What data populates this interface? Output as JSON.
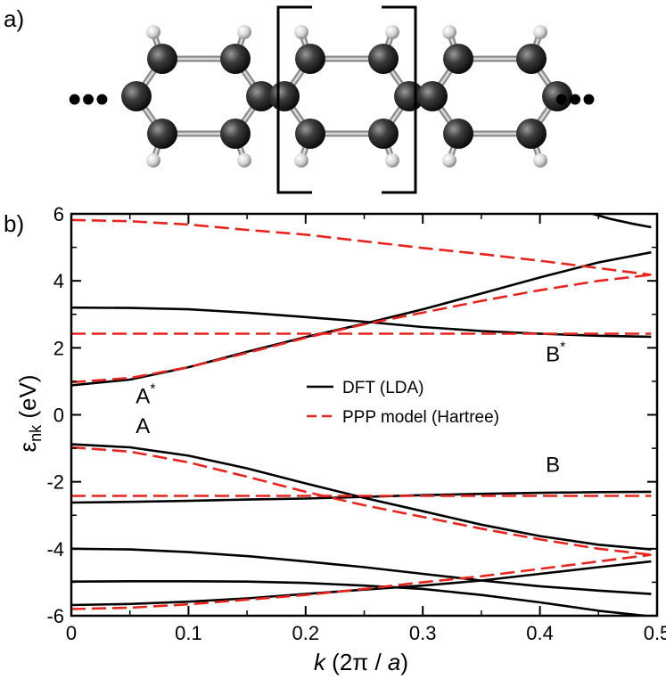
{
  "panel_a": {
    "label": "a)",
    "ellipsis_left": "•••",
    "ellipsis_right": "•••"
  },
  "panel_b": {
    "label": "b)"
  },
  "chart_data": {
    "type": "line",
    "xlabel_italic": "k",
    "xlabel_rest": " (2π / ",
    "xlabel_italic2": "a",
    "xlabel_close": ")",
    "ylabel_main": "ε",
    "ylabel_sub": "nk",
    "ylabel_rest": " (eV)",
    "xlim": [
      0,
      0.5
    ],
    "ylim": [
      -6,
      6
    ],
    "x_ticks": [
      0,
      0.1,
      0.2,
      0.3,
      0.4,
      0.5
    ],
    "x_tick_labels": [
      "0",
      "0.1",
      "0.2",
      "0.3",
      "0.4",
      "0.5"
    ],
    "y_ticks": [
      -6,
      -4,
      -2,
      0,
      2,
      4,
      6
    ],
    "y_tick_labels": [
      "-6",
      "-4",
      "-2",
      "0",
      "2",
      "4",
      "6"
    ],
    "legend": {
      "placement": "center-right",
      "entries": [
        {
          "label": "DFT (LDA)",
          "color": "#000000",
          "dash": "solid"
        },
        {
          "label": "PPP model (Hartree)",
          "color": "#e8241e",
          "dash": "dashed"
        }
      ]
    },
    "annotations": [
      {
        "text": "A",
        "sup": "*",
        "x": 0.055,
        "y": 0.35
      },
      {
        "text": "A",
        "sup": "",
        "x": 0.055,
        "y": -0.55
      },
      {
        "text": "B",
        "sup": "*",
        "x": 0.405,
        "y": 1.6
      },
      {
        "text": "B",
        "sup": "",
        "x": 0.405,
        "y": -1.7
      }
    ],
    "series": [
      {
        "group": "DFT (LDA)",
        "color": "#000000",
        "dash": "solid",
        "x": [
          0,
          0.05,
          0.1,
          0.15,
          0.2,
          0.25,
          0.3,
          0.35,
          0.4,
          0.45,
          0.495
        ],
        "y": [
          3.2,
          3.19,
          3.15,
          3.05,
          2.92,
          2.78,
          2.62,
          2.5,
          2.42,
          2.36,
          2.33
        ]
      },
      {
        "group": "DFT (LDA)",
        "color": "#000000",
        "dash": "solid",
        "x": [
          0,
          0.05,
          0.1,
          0.15,
          0.2,
          0.25,
          0.3,
          0.35,
          0.4,
          0.45,
          0.495
        ],
        "y": [
          0.88,
          1.05,
          1.42,
          1.88,
          2.32,
          2.72,
          3.15,
          3.62,
          4.1,
          4.55,
          4.85
        ]
      },
      {
        "group": "DFT (LDA)",
        "color": "#000000",
        "dash": "solid",
        "x": [
          0.44,
          0.46,
          0.48,
          0.495
        ],
        "y": [
          6.05,
          5.85,
          5.7,
          5.6
        ]
      },
      {
        "group": "DFT (LDA)",
        "color": "#000000",
        "dash": "solid",
        "x": [
          0,
          0.05,
          0.1,
          0.15,
          0.2,
          0.25,
          0.3,
          0.35,
          0.4,
          0.45,
          0.495
        ],
        "y": [
          -0.88,
          -0.97,
          -1.22,
          -1.6,
          -2.05,
          -2.48,
          -2.88,
          -3.28,
          -3.62,
          -3.88,
          -4.02
        ]
      },
      {
        "group": "DFT (LDA)",
        "color": "#000000",
        "dash": "solid",
        "x": [
          0,
          0.05,
          0.1,
          0.15,
          0.2,
          0.25,
          0.3,
          0.35,
          0.4,
          0.45,
          0.495
        ],
        "y": [
          -2.62,
          -2.6,
          -2.57,
          -2.53,
          -2.5,
          -2.45,
          -2.4,
          -2.36,
          -2.33,
          -2.31,
          -2.3
        ]
      },
      {
        "group": "DFT (LDA)",
        "color": "#000000",
        "dash": "solid",
        "x": [
          0,
          0.05,
          0.1,
          0.15,
          0.2,
          0.25,
          0.3,
          0.35,
          0.4,
          0.45,
          0.495
        ],
        "y": [
          -4.0,
          -4.02,
          -4.1,
          -4.22,
          -4.38,
          -4.55,
          -4.75,
          -4.95,
          -5.12,
          -5.25,
          -5.35
        ]
      },
      {
        "group": "DFT (LDA)",
        "color": "#000000",
        "dash": "solid",
        "x": [
          0,
          0.05,
          0.1,
          0.15,
          0.2,
          0.25,
          0.3,
          0.35,
          0.4,
          0.45,
          0.495
        ],
        "y": [
          -4.98,
          -4.97,
          -4.97,
          -4.98,
          -5.02,
          -5.1,
          -5.2,
          -5.38,
          -5.6,
          -5.85,
          -6.02
        ]
      },
      {
        "group": "DFT (LDA)",
        "color": "#000000",
        "dash": "solid",
        "x": [
          0,
          0.05,
          0.1,
          0.15,
          0.2,
          0.25,
          0.3,
          0.35,
          0.4,
          0.45,
          0.495
        ],
        "y": [
          -5.68,
          -5.65,
          -5.58,
          -5.48,
          -5.35,
          -5.22,
          -5.1,
          -4.95,
          -4.75,
          -4.55,
          -4.38
        ]
      },
      {
        "group": "PPP model (Hartree)",
        "color": "#e8241e",
        "dash": "dashed",
        "x": [
          0,
          0.05,
          0.1,
          0.15,
          0.2,
          0.25,
          0.3,
          0.35,
          0.4,
          0.45,
          0.495
        ],
        "y": [
          5.82,
          5.78,
          5.68,
          5.52,
          5.38,
          5.18,
          4.98,
          4.8,
          4.6,
          4.38,
          4.18
        ]
      },
      {
        "group": "PPP model (Hartree)",
        "color": "#e8241e",
        "dash": "dashed",
        "x": [
          0,
          0.05,
          0.1,
          0.15,
          0.2,
          0.25,
          0.3,
          0.35,
          0.4,
          0.45,
          0.495
        ],
        "y": [
          0.97,
          1.1,
          1.42,
          1.85,
          2.3,
          2.7,
          3.05,
          3.4,
          3.72,
          4.0,
          4.18
        ]
      },
      {
        "group": "PPP model (Hartree)",
        "color": "#e8241e",
        "dash": "dashed",
        "x": [
          0,
          0.495
        ],
        "y": [
          2.42,
          2.42
        ]
      },
      {
        "group": "PPP model (Hartree)",
        "color": "#e8241e",
        "dash": "dashed",
        "x": [
          0,
          0.05,
          0.1,
          0.15,
          0.2,
          0.25,
          0.3,
          0.35,
          0.4,
          0.45,
          0.495
        ],
        "y": [
          -0.97,
          -1.1,
          -1.42,
          -1.85,
          -2.3,
          -2.7,
          -3.05,
          -3.4,
          -3.72,
          -4.0,
          -4.18
        ]
      },
      {
        "group": "PPP model (Hartree)",
        "color": "#e8241e",
        "dash": "dashed",
        "x": [
          0,
          0.495
        ],
        "y": [
          -2.42,
          -2.42
        ]
      },
      {
        "group": "PPP model (Hartree)",
        "color": "#e8241e",
        "dash": "dashed",
        "x": [
          0,
          0.05,
          0.1,
          0.15,
          0.2,
          0.25,
          0.3,
          0.35,
          0.4,
          0.45,
          0.495
        ],
        "y": [
          -5.8,
          -5.76,
          -5.66,
          -5.52,
          -5.38,
          -5.2,
          -5.0,
          -4.82,
          -4.6,
          -4.38,
          -4.18
        ]
      }
    ]
  }
}
